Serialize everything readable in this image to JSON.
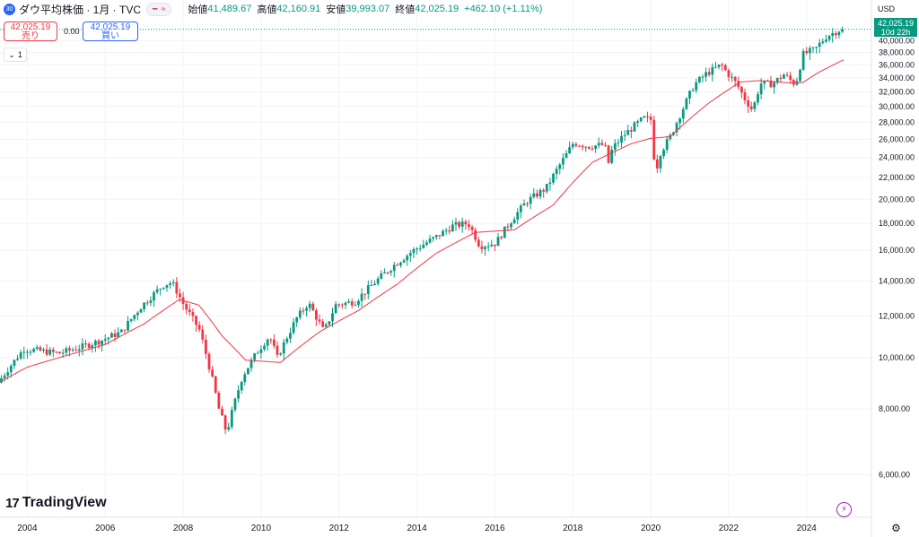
{
  "header": {
    "symbol_badge": "30",
    "title": "ダウ平均株価 · 1月 · TVC",
    "open_label": "始値",
    "open_value": "41,489.67",
    "high_label": "高値",
    "high_value": "42,160.91",
    "low_label": "安値",
    "low_value": "39,993.07",
    "close_label": "終値",
    "close_value": "42,025.19",
    "change": "+462.10 (+1.11%)"
  },
  "trade": {
    "sell_price": "42,025.19",
    "sell_label": "売り",
    "spread": "0.00",
    "buy_price": "42,025.19",
    "buy_label": "買い"
  },
  "interval_toggle": {
    "value": "1"
  },
  "currency": "USD",
  "last_price_tag": {
    "price": "42,025.19",
    "countdown": "10d 22h"
  },
  "logo_text": "TradingView",
  "icons": {
    "flash": "flash-icon",
    "settings": "gear-icon",
    "collapse": "chevron-down-icon"
  },
  "colors": {
    "up": "#089981",
    "down": "#f23645",
    "ma": "#f23645",
    "grid": "#f0f3fa"
  },
  "chart_data": {
    "type": "candlestick",
    "symbol": "ダウ平均株価",
    "interval": "1月",
    "x_range": [
      2003.3,
      2024.95
    ],
    "y_range": [
      5200,
      43500
    ],
    "x_ticks": [
      2004,
      2006,
      2008,
      2010,
      2012,
      2014,
      2016,
      2018,
      2020,
      2022,
      2024
    ],
    "y_ticks": [
      6000,
      8000,
      10000,
      12000,
      14000,
      16000,
      18000,
      20000,
      22000,
      24000,
      26000,
      28000,
      30000,
      32000,
      34000,
      36000,
      38000,
      40000
    ],
    "y_tick_labels": [
      "6,000.00",
      "8,000.00",
      "10,000.00",
      "12,000.00",
      "14,000.00",
      "16,000.00",
      "18,000.00",
      "20,000.00",
      "22,000.00",
      "24,000.00",
      "26,000.00",
      "28,000.00",
      "30,000.00",
      "32,000.00",
      "34,000.00",
      "36,000.00",
      "38,000.00",
      "40,000.00"
    ],
    "x_tick_labels": [
      "2004",
      "2006",
      "2008",
      "2010",
      "2012",
      "2014",
      "2016",
      "2018",
      "2020",
      "2022",
      "2024"
    ],
    "last_price": 42025.19,
    "anchors": [
      [
        2003.3,
        8900
      ],
      [
        2004.0,
        10400
      ],
      [
        2004.9,
        10200
      ],
      [
        2005.5,
        10500
      ],
      [
        2006.0,
        10800
      ],
      [
        2006.5,
        11200
      ],
      [
        2007.0,
        12500
      ],
      [
        2007.6,
        13800
      ],
      [
        2007.8,
        13900
      ],
      [
        2008.1,
        12600
      ],
      [
        2008.5,
        11300
      ],
      [
        2008.8,
        9300
      ],
      [
        2009.0,
        8000
      ],
      [
        2009.2,
        7200
      ],
      [
        2009.6,
        9200
      ],
      [
        2010.0,
        10300
      ],
      [
        2010.3,
        11000
      ],
      [
        2010.5,
        10000
      ],
      [
        2011.0,
        11900
      ],
      [
        2011.3,
        12700
      ],
      [
        2011.7,
        11200
      ],
      [
        2012.0,
        12600
      ],
      [
        2012.5,
        12800
      ],
      [
        2013.0,
        13900
      ],
      [
        2013.5,
        15000
      ],
      [
        2014.0,
        16000
      ],
      [
        2014.6,
        17000
      ],
      [
        2015.0,
        17800
      ],
      [
        2015.4,
        18000
      ],
      [
        2015.7,
        16300
      ],
      [
        2016.1,
        16500
      ],
      [
        2016.5,
        18200
      ],
      [
        2016.9,
        19800
      ],
      [
        2017.4,
        21000
      ],
      [
        2017.9,
        24200
      ],
      [
        2018.1,
        25600
      ],
      [
        2018.5,
        25200
      ],
      [
        2018.9,
        25400
      ],
      [
        2018.99,
        23300
      ],
      [
        2019.1,
        25000
      ],
      [
        2019.4,
        26500
      ],
      [
        2019.9,
        28500
      ],
      [
        2020.1,
        28300
      ],
      [
        2020.2,
        22000
      ],
      [
        2020.3,
        24300
      ],
      [
        2020.6,
        26400
      ],
      [
        2020.9,
        29600
      ],
      [
        2021.2,
        33000
      ],
      [
        2021.5,
        34600
      ],
      [
        2021.9,
        36000
      ],
      [
        2022.0,
        35100
      ],
      [
        2022.3,
        33000
      ],
      [
        2022.5,
        31000
      ],
      [
        2022.7,
        29500
      ],
      [
        2022.9,
        33200
      ],
      [
        2023.2,
        33100
      ],
      [
        2023.5,
        34500
      ],
      [
        2023.8,
        33000
      ],
      [
        2024.0,
        37700
      ],
      [
        2024.3,
        38500
      ],
      [
        2024.6,
        40800
      ],
      [
        2024.95,
        42025
      ]
    ],
    "ma_anchors": [
      [
        2003.3,
        9000
      ],
      [
        2004.0,
        9600
      ],
      [
        2005.0,
        10100
      ],
      [
        2006.0,
        10600
      ],
      [
        2007.0,
        11600
      ],
      [
        2007.9,
        12900
      ],
      [
        2008.4,
        12600
      ],
      [
        2009.0,
        11000
      ],
      [
        2009.6,
        9900
      ],
      [
        2010.5,
        9800
      ],
      [
        2011.5,
        11200
      ],
      [
        2012.5,
        12300
      ],
      [
        2013.5,
        13800
      ],
      [
        2014.5,
        15800
      ],
      [
        2015.5,
        17300
      ],
      [
        2016.5,
        17500
      ],
      [
        2017.5,
        19500
      ],
      [
        2018.5,
        23500
      ],
      [
        2019.5,
        25500
      ],
      [
        2020.0,
        26100
      ],
      [
        2020.5,
        26300
      ],
      [
        2021.5,
        30500
      ],
      [
        2022.3,
        33400
      ],
      [
        2022.8,
        33600
      ],
      [
        2023.5,
        33300
      ],
      [
        2023.9,
        33300
      ],
      [
        2024.3,
        34800
      ],
      [
        2024.95,
        36800
      ]
    ]
  }
}
